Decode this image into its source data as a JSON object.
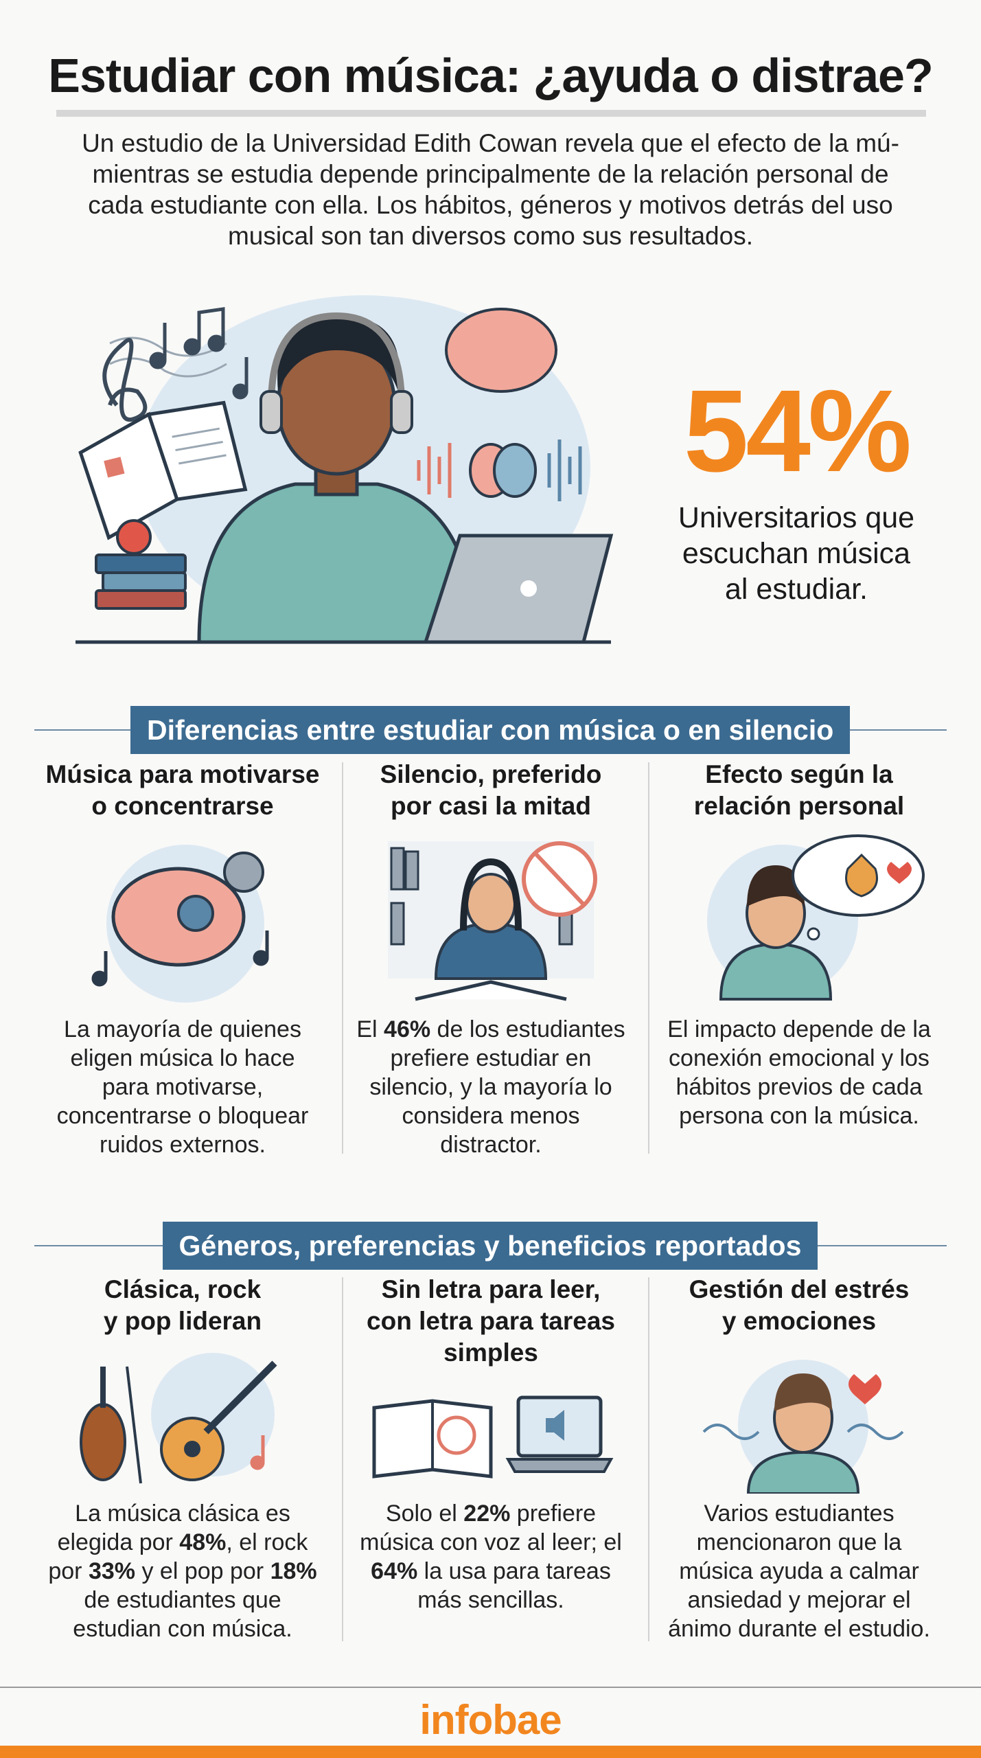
{
  "header": {
    "title": "Estudiar con música: ¿ayuda o distrae?",
    "intro": [
      "Un estudio de la Universidad Edith Cowan revela que el efecto de la mú-",
      "mientras se estudia depende principalmente de la relación personal de",
      "cada estudiante con ella. Los hábitos, géneros y motivos detrás del uso",
      "musical son tan diversos como sus resultados."
    ]
  },
  "hero": {
    "stat": "54%",
    "caption": [
      "Universitarios que",
      "escuchan música",
      "al estudiar."
    ]
  },
  "sections": [
    {
      "heading": "Diferencias entre estudiar con música o en silencio",
      "columns": [
        {
          "title": [
            "Música para motivarse",
            "o concentrarse"
          ],
          "body": [
            "La mayoría de quienes eligen música lo hace para motivarse, concentrarse o bloquear ruidos externos."
          ]
        },
        {
          "title": [
            "Silencio, preferido",
            "por casi la mitad"
          ],
          "body": [
            "El ",
            "46%",
            " de los estudiantes prefiere estudiar en silencio, y la mayoría lo considera menos distractor."
          ]
        },
        {
          "title": [
            "Efecto según la",
            "relación personal"
          ],
          "body": [
            "El impacto depende de la conexión emocional y los hábitos previos de cada persona con la música."
          ]
        }
      ]
    },
    {
      "heading": "Géneros, preferencias y beneficios reportados",
      "columns": [
        {
          "title": [
            "Clásica, rock",
            "y pop lideran"
          ],
          "body": [
            "La música clásica es elegida por ",
            "48%",
            ", el rock por ",
            "33%",
            " y el pop por ",
            "18%",
            " de estudiantes que estudian con música."
          ]
        },
        {
          "title": [
            "Sin letra para leer,",
            "con letra para tareas",
            "simples"
          ],
          "body": [
            "Solo el ",
            "22%",
            " prefiere música con voz al leer; el ",
            "64%",
            " la usa para tareas más sencillas."
          ]
        },
        {
          "title": [
            "Gestión del estrés",
            "y emociones"
          ],
          "body": [
            "Varios estudiantes mencionaron que la música ayuda a calmar ansiedad y mejorar el ánimo durante el estudio."
          ]
        }
      ]
    }
  ],
  "footer": {
    "brand": "infobae"
  }
}
